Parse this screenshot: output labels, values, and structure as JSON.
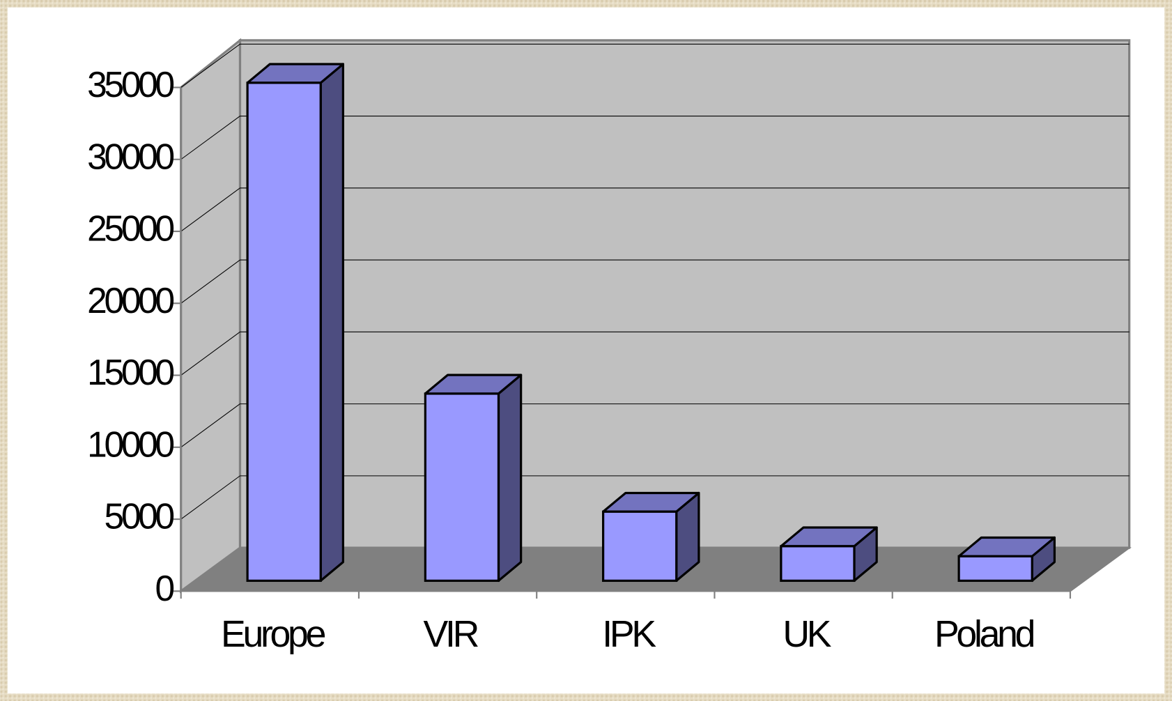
{
  "chart_data": {
    "type": "bar3d",
    "categories": [
      "Europe",
      "VIR",
      "IPK",
      "UK",
      "Poland"
    ],
    "values": [
      34600,
      13000,
      4800,
      2400,
      1700
    ],
    "color": "#9999ff",
    "ylim": [
      0,
      35000
    ],
    "yticks": [
      0,
      5000,
      10000,
      15000,
      20000,
      25000,
      30000,
      35000
    ],
    "grid": true
  }
}
